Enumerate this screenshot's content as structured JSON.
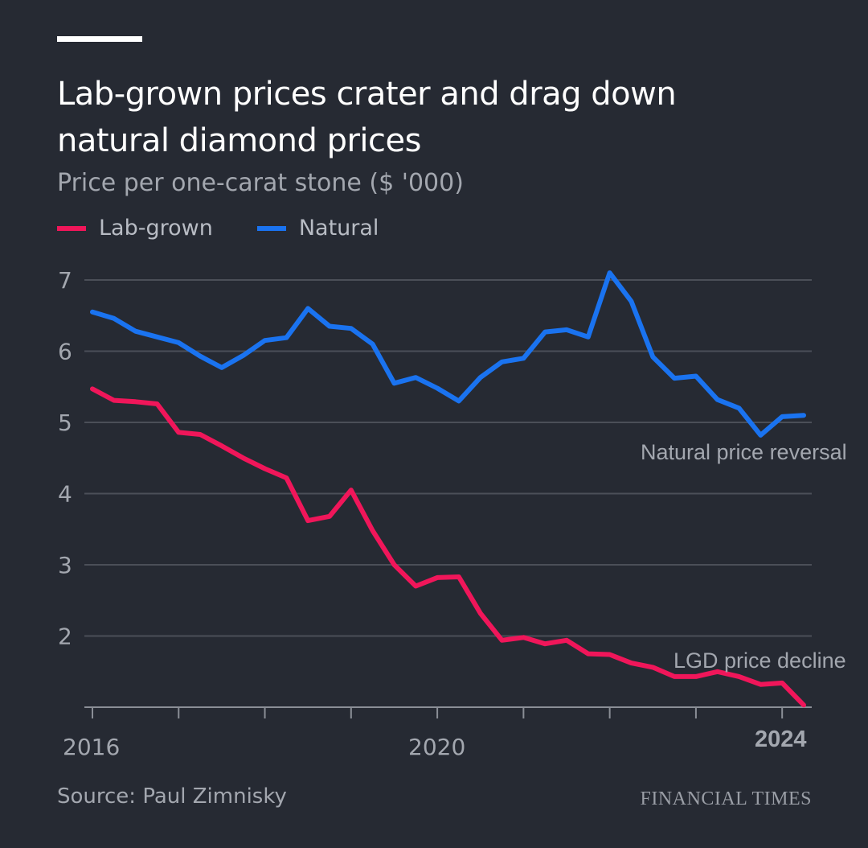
{
  "chart_data": {
    "type": "line",
    "title": "Lab-grown prices crater and drag down natural diamond prices",
    "subtitle": "Price per one-carat stone ($ '000)",
    "source": "Source: Paul Zimnisky",
    "publisher": "FINANCIAL TIMES",
    "legend_placement": "top-left",
    "grid": true,
    "xlim": [
      2016,
      2024.25
    ],
    "ylim": [
      1,
      7
    ],
    "yticks": [
      2,
      3,
      4,
      5,
      6,
      7
    ],
    "xtick_labels": [
      "2016",
      "2020",
      "2024"
    ],
    "x": [
      2016,
      2016.25,
      2016.5,
      2016.75,
      2017,
      2017.25,
      2017.5,
      2017.75,
      2018,
      2018.25,
      2018.5,
      2018.75,
      2019,
      2019.25,
      2019.5,
      2019.75,
      2020,
      2020.25,
      2020.5,
      2020.75,
      2021,
      2021.25,
      2021.5,
      2021.75,
      2022,
      2022.25,
      2022.5,
      2022.75,
      2023,
      2023.25,
      2023.5,
      2023.75,
      2024,
      2024.25
    ],
    "series": [
      {
        "name": "Lab-grown",
        "color": "#f0165a",
        "values": [
          5.47,
          5.31,
          5.29,
          5.26,
          4.86,
          4.83,
          4.67,
          4.5,
          4.35,
          4.22,
          3.62,
          3.68,
          4.05,
          3.48,
          3.0,
          2.7,
          2.82,
          2.83,
          2.32,
          1.94,
          1.98,
          1.89,
          1.94,
          1.75,
          1.74,
          1.62,
          1.56,
          1.43,
          1.43,
          1.5,
          1.43,
          1.32,
          1.34,
          1.03
        ]
      },
      {
        "name": "Natural",
        "color": "#1a73f0",
        "values": [
          6.55,
          6.46,
          6.28,
          6.2,
          6.12,
          5.93,
          5.77,
          5.94,
          6.15,
          6.19,
          6.6,
          6.35,
          6.32,
          6.1,
          5.55,
          5.63,
          5.48,
          5.3,
          5.63,
          5.85,
          5.9,
          6.27,
          6.3,
          6.2,
          7.1,
          6.7,
          5.92,
          5.62,
          5.65,
          5.32,
          5.2,
          4.82,
          5.08,
          5.1
        ]
      }
    ],
    "annotations": [
      "Natural price reversal",
      "LGD price decline"
    ]
  }
}
